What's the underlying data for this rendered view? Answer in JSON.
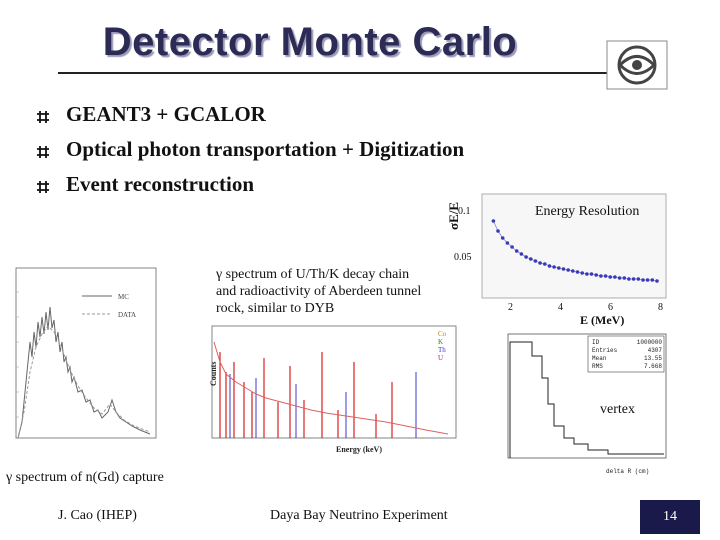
{
  "title": "Detector Monte Carlo",
  "bullets": [
    "GEANT3 + GCALOR",
    "Optical photon transportation + Digitization",
    "Event reconstruction"
  ],
  "energy_resolution": {
    "caption": "Energy Resolution",
    "ylabel": "σE/E",
    "xlabel": "E (MeV)",
    "y_ticks": [
      "0.1",
      "0.05"
    ],
    "x_ticks": [
      "2",
      "4",
      "6",
      "8"
    ]
  },
  "gamma_uthk": {
    "caption_lines": [
      "γ spectrum of U/Th/K decay chain",
      "and radioactivity of Aberdeen tunnel",
      "rock, similar to DYB"
    ],
    "ylabel": "Counts",
    "xlabel": "Energy (keV)",
    "legend": [
      "Co",
      "K",
      "Th",
      "U"
    ]
  },
  "gamma_gd": {
    "caption": "γ spectrum of n(Gd) capture",
    "legend": [
      "MC",
      "DATA"
    ]
  },
  "vertex": {
    "caption": "vertex",
    "xlabel": "delta R (cm)",
    "stats_labels": [
      "ID",
      "Entries",
      "Mean",
      "RMS"
    ],
    "stats_values": [
      "1000000",
      "4307",
      "13.55",
      "7.668"
    ]
  },
  "footer": {
    "author": "J. Cao (IHEP)",
    "experiment": "Daya Bay Neutrino Experiment",
    "page": "14"
  },
  "colors": {
    "title": "#2b2b55",
    "page_box": "#1a1a4a",
    "resolution_points": "#3a3ab8",
    "mc_red": "#d42020"
  },
  "chart_data": [
    {
      "type": "scatter",
      "title": "Energy Resolution",
      "xlabel": "E (MeV)",
      "ylabel": "σE/E",
      "xlim": [
        0.5,
        8.2
      ],
      "ylim": [
        0.03,
        0.13
      ],
      "x": [
        0.9,
        1.1,
        1.3,
        1.5,
        1.7,
        1.9,
        2.1,
        2.3,
        2.5,
        2.7,
        2.9,
        3.1,
        3.3,
        3.5,
        3.7,
        3.9,
        4.1,
        4.3,
        4.5,
        4.7,
        4.9,
        5.1,
        5.3,
        5.5,
        5.7,
        5.9,
        6.1,
        6.3,
        6.5,
        6.7,
        6.9,
        7.1,
        7.3,
        7.5,
        7.7,
        7.9
      ],
      "y": [
        0.105,
        0.095,
        0.088,
        0.083,
        0.079,
        0.075,
        0.072,
        0.069,
        0.067,
        0.065,
        0.063,
        0.062,
        0.06,
        0.059,
        0.058,
        0.057,
        0.056,
        0.055,
        0.054,
        0.053,
        0.052,
        0.052,
        0.051,
        0.05,
        0.05,
        0.049,
        0.049,
        0.048,
        0.048,
        0.047,
        0.047,
        0.047,
        0.046,
        0.046,
        0.046,
        0.045
      ]
    }
  ]
}
